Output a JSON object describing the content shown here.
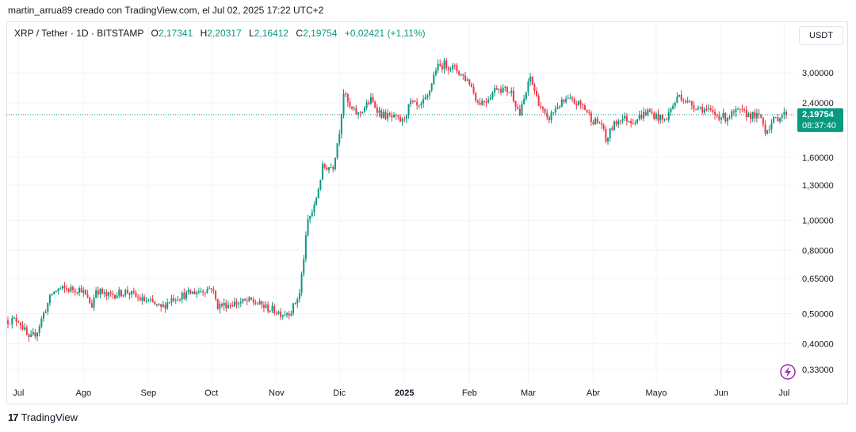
{
  "credit": "martin_arrua89 creado con TradingView.com, el Jul 02, 2025 17:22 UTC+2",
  "legend": {
    "symbol": "XRP / Tether · 1D · BITSTAMP",
    "o_label": "O",
    "o_value": "2,17341",
    "h_label": "H",
    "h_value": "2,20317",
    "l_label": "L",
    "l_value": "2,16412",
    "c_label": "C",
    "c_value": "2,19754",
    "change": "+0,02421 (+1,11%)"
  },
  "currency": "USDT",
  "price_tag": {
    "price": "2,19754",
    "countdown": "08:37:40"
  },
  "brand": "TradingView",
  "colors": {
    "up": "#089981",
    "down": "#f23645",
    "grid": "#f0f3fa",
    "accent_icon": "#9c27b0"
  },
  "chart_data": {
    "type": "candlestick",
    "scale": "log",
    "grid": true,
    "y_ticks": [
      {
        "value": 3.0,
        "label": "3,00000"
      },
      {
        "value": 2.4,
        "label": "2,40000"
      },
      {
        "value": 1.6,
        "label": "1,60000"
      },
      {
        "value": 1.3,
        "label": "1,30000"
      },
      {
        "value": 1.0,
        "label": "1,00000"
      },
      {
        "value": 0.8,
        "label": "0,80000"
      },
      {
        "value": 0.65,
        "label": "0,65000"
      },
      {
        "value": 0.5,
        "label": "0,50000"
      },
      {
        "value": 0.4,
        "label": "0,40000"
      },
      {
        "value": 0.33,
        "label": "0,33000"
      }
    ],
    "x_ticks": [
      {
        "date": "2024-07-01",
        "label": "Jul",
        "bold": false
      },
      {
        "date": "2024-08-01",
        "label": "Ago",
        "bold": false
      },
      {
        "date": "2024-09-01",
        "label": "Sep",
        "bold": false
      },
      {
        "date": "2024-10-01",
        "label": "Oct",
        "bold": false
      },
      {
        "date": "2024-11-01",
        "label": "Nov",
        "bold": false
      },
      {
        "date": "2024-12-01",
        "label": "Dic",
        "bold": false
      },
      {
        "date": "2025-01-01",
        "label": "2025",
        "bold": true
      },
      {
        "date": "2025-02-01",
        "label": "Feb",
        "bold": false
      },
      {
        "date": "2025-03-01",
        "label": "Mar",
        "bold": false
      },
      {
        "date": "2025-04-01",
        "label": "Abr",
        "bold": false
      },
      {
        "date": "2025-05-01",
        "label": "Mayo",
        "bold": false
      },
      {
        "date": "2025-06-01",
        "label": "Jun",
        "bold": false
      },
      {
        "date": "2025-07-01",
        "label": "Jul",
        "bold": false
      }
    ],
    "date_range": [
      "2024-06-26",
      "2025-07-02"
    ],
    "last_close": 2.19754,
    "close_path": [
      [
        "2024-06-26",
        0.475
      ],
      [
        "2024-07-01",
        0.478
      ],
      [
        "2024-07-04",
        0.44
      ],
      [
        "2024-07-06",
        0.41
      ],
      [
        "2024-07-10",
        0.44
      ],
      [
        "2024-07-13",
        0.5
      ],
      [
        "2024-07-17",
        0.58
      ],
      [
        "2024-07-20",
        0.6
      ],
      [
        "2024-07-24",
        0.6
      ],
      [
        "2024-07-31",
        0.6
      ],
      [
        "2024-08-05",
        0.53
      ],
      [
        "2024-08-07",
        0.6
      ],
      [
        "2024-08-12",
        0.57
      ],
      [
        "2024-08-17",
        0.58
      ],
      [
        "2024-08-22",
        0.59
      ],
      [
        "2024-08-27",
        0.56
      ],
      [
        "2024-09-03",
        0.54
      ],
      [
        "2024-09-07",
        0.52
      ],
      [
        "2024-09-12",
        0.56
      ],
      [
        "2024-09-20",
        0.58
      ],
      [
        "2024-09-29",
        0.6
      ],
      [
        "2024-10-01",
        0.61
      ],
      [
        "2024-10-04",
        0.53
      ],
      [
        "2024-10-12",
        0.54
      ],
      [
        "2024-10-20",
        0.55
      ],
      [
        "2024-10-28",
        0.52
      ],
      [
        "2024-11-04",
        0.5
      ],
      [
        "2024-11-08",
        0.51
      ],
      [
        "2024-11-12",
        0.58
      ],
      [
        "2024-11-16",
        1.0
      ],
      [
        "2024-11-19",
        1.1
      ],
      [
        "2024-11-23",
        1.48
      ],
      [
        "2024-11-28",
        1.5
      ],
      [
        "2024-12-01",
        1.95
      ],
      [
        "2024-12-03",
        2.6
      ],
      [
        "2024-12-06",
        2.3
      ],
      [
        "2024-12-10",
        2.2
      ],
      [
        "2024-12-16",
        2.45
      ],
      [
        "2024-12-21",
        2.2
      ],
      [
        "2024-12-26",
        2.15
      ],
      [
        "2024-12-31",
        2.09
      ],
      [
        "2025-01-04",
        2.4
      ],
      [
        "2025-01-08",
        2.3
      ],
      [
        "2025-01-12",
        2.5
      ],
      [
        "2025-01-16",
        3.1
      ],
      [
        "2025-01-20",
        3.2
      ],
      [
        "2025-01-25",
        3.1
      ],
      [
        "2025-02-01",
        2.8
      ],
      [
        "2025-02-03",
        2.6
      ],
      [
        "2025-02-05",
        2.4
      ],
      [
        "2025-02-09",
        2.45
      ],
      [
        "2025-02-14",
        2.7
      ],
      [
        "2025-02-21",
        2.6
      ],
      [
        "2025-02-25",
        2.2
      ],
      [
        "2025-03-02",
        2.9
      ],
      [
        "2025-03-05",
        2.5
      ],
      [
        "2025-03-10",
        2.1
      ],
      [
        "2025-03-15",
        2.35
      ],
      [
        "2025-03-20",
        2.45
      ],
      [
        "2025-03-27",
        2.35
      ],
      [
        "2025-04-01",
        2.1
      ],
      [
        "2025-04-05",
        2.05
      ],
      [
        "2025-04-07",
        1.8
      ],
      [
        "2025-04-10",
        2.0
      ],
      [
        "2025-04-14",
        2.15
      ],
      [
        "2025-04-20",
        2.1
      ],
      [
        "2025-04-27",
        2.25
      ],
      [
        "2025-05-05",
        2.1
      ],
      [
        "2025-05-09",
        2.35
      ],
      [
        "2025-05-12",
        2.55
      ],
      [
        "2025-05-16",
        2.4
      ],
      [
        "2025-05-23",
        2.3
      ],
      [
        "2025-05-29",
        2.2
      ],
      [
        "2025-06-03",
        2.15
      ],
      [
        "2025-06-09",
        2.25
      ],
      [
        "2025-06-14",
        2.2
      ],
      [
        "2025-06-20",
        2.15
      ],
      [
        "2025-06-22",
        1.95
      ],
      [
        "2025-06-26",
        2.1
      ],
      [
        "2025-06-30",
        2.2
      ],
      [
        "2025-07-02",
        2.19754
      ]
    ]
  }
}
